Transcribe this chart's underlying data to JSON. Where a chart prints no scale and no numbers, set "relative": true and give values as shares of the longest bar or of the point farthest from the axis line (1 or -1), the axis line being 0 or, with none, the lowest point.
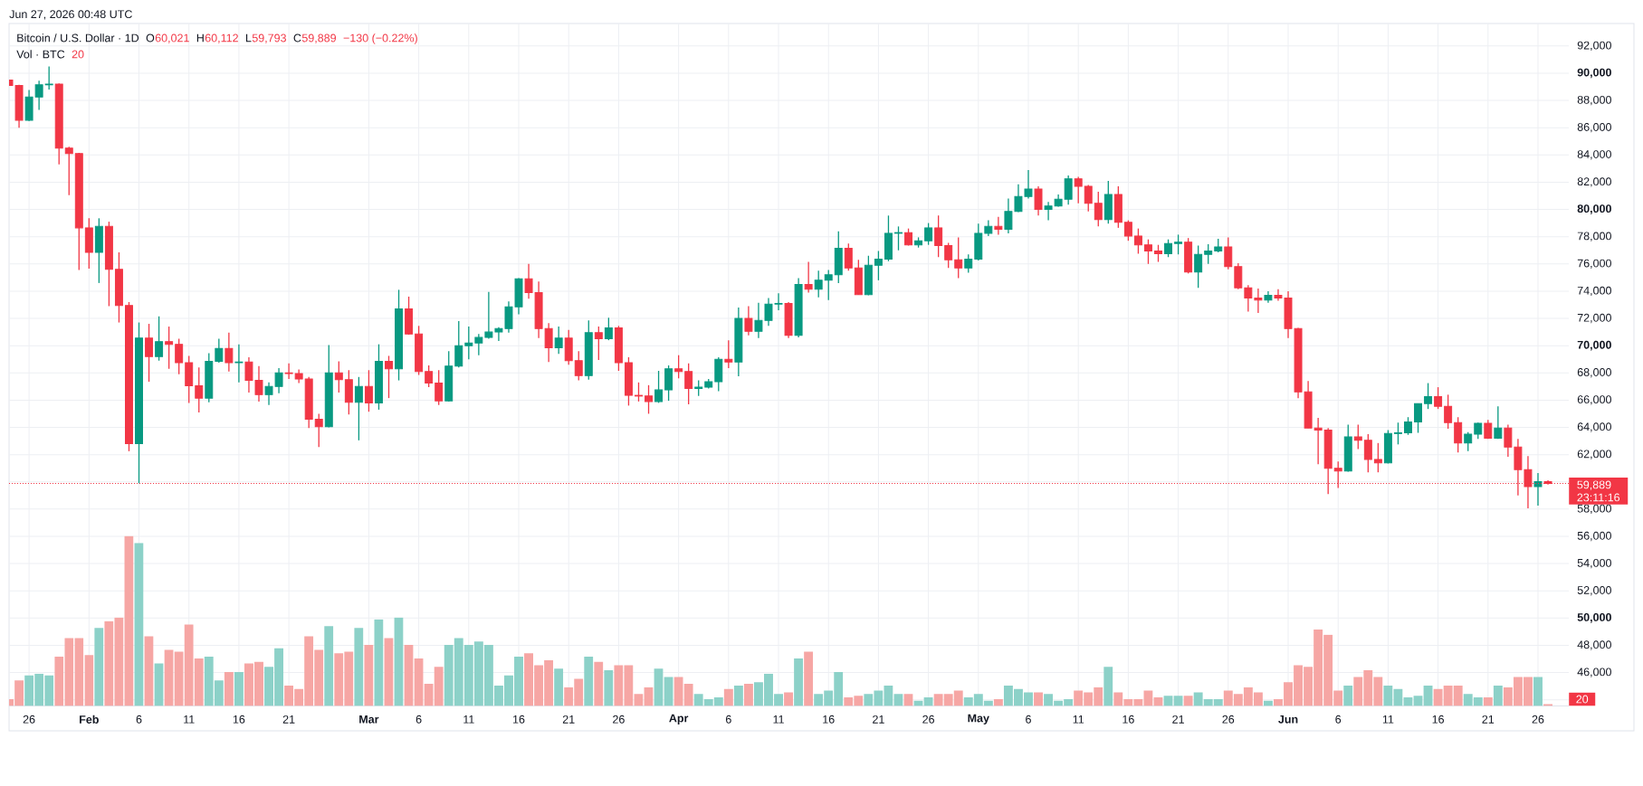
{
  "chart_data": [
    {
      "type": "candlestick",
      "title": "Bitcoin / U.S. Dollar · 1D",
      "annotations": [
        "Jun 27, 2026 00:48 UTC",
        "O",
        "60,021",
        "H",
        "60,112",
        "L",
        "59,793",
        "C",
        "59,889",
        "−130 (−0.22%)",
        "23:11:16"
      ],
      "x": [
        "2026-01-24",
        "2026-01-25",
        "2026-01-26",
        "2026-01-27",
        "2026-01-28",
        "2026-01-29",
        "2026-01-30",
        "2026-01-31",
        "2026-02-01",
        "2026-02-02",
        "2026-02-03",
        "2026-02-04",
        "2026-02-05",
        "2026-02-06",
        "2026-02-07",
        "2026-02-08",
        "2026-02-09",
        "2026-02-10",
        "2026-02-11",
        "2026-02-12",
        "2026-02-13",
        "2026-02-14",
        "2026-02-15",
        "2026-02-16",
        "2026-02-17",
        "2026-02-18",
        "2026-02-19",
        "2026-02-20",
        "2026-02-21",
        "2026-02-22",
        "2026-02-23",
        "2026-02-24",
        "2026-02-25",
        "2026-02-26",
        "2026-02-27",
        "2026-02-28",
        "2026-03-01",
        "2026-03-02",
        "2026-03-03",
        "2026-03-04",
        "2026-03-05",
        "2026-03-06",
        "2026-03-07",
        "2026-03-08",
        "2026-03-09",
        "2026-03-10",
        "2026-03-11",
        "2026-03-12",
        "2026-03-13",
        "2026-03-14",
        "2026-03-15",
        "2026-03-16",
        "2026-03-17",
        "2026-03-18",
        "2026-03-19",
        "2026-03-20",
        "2026-03-21",
        "2026-03-22",
        "2026-03-23",
        "2026-03-24",
        "2026-03-25",
        "2026-03-26",
        "2026-03-27",
        "2026-03-28",
        "2026-03-29",
        "2026-03-30",
        "2026-03-31",
        "2026-04-01",
        "2026-04-02",
        "2026-04-03",
        "2026-04-04",
        "2026-04-05",
        "2026-04-06",
        "2026-04-07",
        "2026-04-08",
        "2026-04-09",
        "2026-04-10",
        "2026-04-11",
        "2026-04-12",
        "2026-04-13",
        "2026-04-14",
        "2026-04-15",
        "2026-04-16",
        "2026-04-17",
        "2026-04-18",
        "2026-04-19",
        "2026-04-20",
        "2026-04-21",
        "2026-04-22",
        "2026-04-23",
        "2026-04-24",
        "2026-04-25",
        "2026-04-26",
        "2026-04-27",
        "2026-04-28",
        "2026-04-29",
        "2026-04-30",
        "2026-05-01",
        "2026-05-02",
        "2026-05-03",
        "2026-05-04",
        "2026-05-05",
        "2026-05-06",
        "2026-05-07",
        "2026-05-08",
        "2026-05-09",
        "2026-05-10",
        "2026-05-11",
        "2026-05-12",
        "2026-05-13",
        "2026-05-14",
        "2026-05-15",
        "2026-05-16",
        "2026-05-17",
        "2026-05-18",
        "2026-05-19",
        "2026-05-20",
        "2026-05-21",
        "2026-05-22",
        "2026-05-23",
        "2026-05-24",
        "2026-05-25",
        "2026-05-26",
        "2026-05-27",
        "2026-05-28",
        "2026-05-29",
        "2026-05-30",
        "2026-05-31",
        "2026-06-01",
        "2026-06-02",
        "2026-06-03",
        "2026-06-04",
        "2026-06-05",
        "2026-06-06",
        "2026-06-07",
        "2026-06-08",
        "2026-06-09",
        "2026-06-10",
        "2026-06-11",
        "2026-06-12",
        "2026-06-13",
        "2026-06-14",
        "2026-06-15",
        "2026-06-16",
        "2026-06-17",
        "2026-06-18",
        "2026-06-19",
        "2026-06-20",
        "2026-06-21",
        "2026-06-22",
        "2026-06-23",
        "2026-06-24",
        "2026-06-25",
        "2026-06-26",
        "2026-06-27"
      ],
      "ohlc": [
        [
          89500,
          89500,
          89100,
          89100
        ],
        [
          89100,
          89150,
          86000,
          86550
        ],
        [
          86550,
          88770,
          86500,
          88250
        ],
        [
          88250,
          89450,
          87300,
          89150
        ],
        [
          89150,
          90500,
          88800,
          89200
        ],
        [
          89200,
          89250,
          83300,
          84500
        ],
        [
          84500,
          84600,
          81050,
          84100
        ],
        [
          84100,
          84150,
          75550,
          78650
        ],
        [
          78650,
          79350,
          75650,
          76850
        ],
        [
          76850,
          79350,
          74600,
          78750
        ],
        [
          78750,
          79100,
          72900,
          75600
        ],
        [
          75600,
          76850,
          71700,
          72950
        ],
        [
          72950,
          73200,
          62250,
          62800
        ],
        [
          62800,
          71700,
          59900,
          70550
        ],
        [
          70550,
          71600,
          67350,
          69200
        ],
        [
          69200,
          72150,
          68900,
          70300
        ],
        [
          70300,
          71400,
          68300,
          70100
        ],
        [
          70100,
          70500,
          67900,
          68750
        ],
        [
          68750,
          69250,
          65800,
          67050
        ],
        [
          67050,
          68400,
          65100,
          66150
        ],
        [
          66150,
          69450,
          65850,
          68850
        ],
        [
          68850,
          70500,
          68750,
          69800
        ],
        [
          69800,
          70950,
          68100,
          68750
        ],
        [
          68750,
          70100,
          67300,
          68800
        ],
        [
          68800,
          69150,
          66550,
          67450
        ],
        [
          67450,
          68500,
          65900,
          66400
        ],
        [
          66400,
          67300,
          65650,
          67000
        ],
        [
          67000,
          68350,
          66500,
          68000
        ],
        [
          68000,
          68700,
          67550,
          67950
        ],
        [
          67950,
          68250,
          67250,
          67550
        ],
        [
          67550,
          67700,
          63950,
          64600
        ],
        [
          64600,
          65000,
          62550,
          64050
        ],
        [
          64050,
          70050,
          64000,
          68000
        ],
        [
          68000,
          68850,
          66550,
          67500
        ],
        [
          67500,
          68200,
          64950,
          65850
        ],
        [
          65850,
          67700,
          63050,
          67000
        ],
        [
          67000,
          68200,
          65150,
          65800
        ],
        [
          65800,
          70100,
          65300,
          68850
        ],
        [
          68850,
          69250,
          66150,
          68300
        ],
        [
          68300,
          74100,
          67450,
          72700
        ],
        [
          72700,
          73600,
          70800,
          70850
        ],
        [
          70850,
          71450,
          67850,
          68100
        ],
        [
          68100,
          68550,
          66950,
          67250
        ],
        [
          67250,
          68200,
          65650,
          65950
        ],
        [
          65950,
          69600,
          65900,
          68500
        ],
        [
          68500,
          71800,
          68400,
          70000
        ],
        [
          70000,
          71400,
          69000,
          70200
        ],
        [
          70200,
          70850,
          69300,
          70600
        ],
        [
          70600,
          73950,
          70500,
          71000
        ],
        [
          71000,
          71350,
          70350,
          71250
        ],
        [
          71250,
          73250,
          70950,
          72850
        ],
        [
          72850,
          74950,
          72300,
          74900
        ],
        [
          74900,
          76000,
          73450,
          73900
        ],
        [
          73900,
          74700,
          70550,
          71250
        ],
        [
          71250,
          71650,
          68800,
          69850
        ],
        [
          69850,
          71400,
          69400,
          70550
        ],
        [
          70550,
          71150,
          68600,
          68900
        ],
        [
          68900,
          69600,
          67450,
          67800
        ],
        [
          67800,
          71850,
          67500,
          70950
        ],
        [
          70950,
          71400,
          68950,
          70500
        ],
        [
          70500,
          72050,
          70400,
          71300
        ],
        [
          71300,
          71450,
          68150,
          68750
        ],
        [
          68750,
          69150,
          65600,
          66350
        ],
        [
          66350,
          67300,
          65900,
          66300
        ],
        [
          66300,
          67100,
          65000,
          65900
        ],
        [
          65900,
          68150,
          65800,
          66750
        ],
        [
          66750,
          68550,
          65950,
          68300
        ],
        [
          68300,
          69300,
          67600,
          68100
        ],
        [
          68100,
          68700,
          65700,
          66850
        ],
        [
          66850,
          67450,
          66300,
          66950
        ],
        [
          66950,
          67550,
          66850,
          67350
        ],
        [
          67350,
          69150,
          66650,
          69000
        ],
        [
          69000,
          70400,
          68350,
          68800
        ],
        [
          68800,
          72800,
          67750,
          72000
        ],
        [
          72000,
          72900,
          70750,
          71050
        ],
        [
          71050,
          73150,
          70550,
          71850
        ],
        [
          71850,
          73500,
          71450,
          73050
        ],
        [
          73050,
          73850,
          72600,
          73100
        ],
        [
          73100,
          73200,
          70550,
          70750
        ],
        [
          70750,
          74950,
          70600,
          74500
        ],
        [
          74500,
          76150,
          73900,
          74150
        ],
        [
          74150,
          75500,
          73550,
          74800
        ],
        [
          74800,
          75550,
          73350,
          75200
        ],
        [
          75200,
          78400,
          74600,
          77150
        ],
        [
          77150,
          77500,
          75500,
          75700
        ],
        [
          75700,
          76300,
          73750,
          73750
        ],
        [
          73750,
          76600,
          73700,
          75900
        ],
        [
          75900,
          76950,
          74800,
          76350
        ],
        [
          76350,
          79550,
          76200,
          78250
        ],
        [
          78250,
          78750,
          77000,
          78300
        ],
        [
          78300,
          78600,
          77350,
          77400
        ],
        [
          77400,
          77950,
          77200,
          77700
        ],
        [
          77700,
          79000,
          77400,
          78650
        ],
        [
          78650,
          79550,
          76500,
          77350
        ],
        [
          77350,
          77550,
          75700,
          76300
        ],
        [
          76300,
          77950,
          74950,
          75700
        ],
        [
          75700,
          76700,
          75350,
          76350
        ],
        [
          76350,
          78950,
          76250,
          78250
        ],
        [
          78250,
          79200,
          78050,
          78750
        ],
        [
          78750,
          79450,
          78150,
          78550
        ],
        [
          78550,
          80800,
          78250,
          79850
        ],
        [
          79850,
          81850,
          79800,
          80950
        ],
        [
          80950,
          82900,
          80800,
          81500
        ],
        [
          81500,
          81700,
          79550,
          80000
        ],
        [
          80000,
          80550,
          79200,
          80250
        ],
        [
          80250,
          81100,
          80200,
          80750
        ],
        [
          80750,
          82500,
          80350,
          82250
        ],
        [
          82250,
          82400,
          80450,
          81700
        ],
        [
          81700,
          81800,
          79850,
          80450
        ],
        [
          80450,
          81300,
          78750,
          79250
        ],
        [
          79250,
          82100,
          78950,
          81100
        ],
        [
          81100,
          81700,
          78650,
          79050
        ],
        [
          79050,
          79200,
          77700,
          78050
        ],
        [
          78050,
          78600,
          76750,
          77400
        ],
        [
          77400,
          77800,
          76000,
          76950
        ],
        [
          76950,
          77400,
          76150,
          76750
        ],
        [
          76750,
          77800,
          76500,
          77500
        ],
        [
          77500,
          78150,
          76700,
          77600
        ],
        [
          77600,
          77900,
          75300,
          75400
        ],
        [
          75400,
          77350,
          74250,
          76700
        ],
        [
          76700,
          77450,
          76000,
          76950
        ],
        [
          76950,
          77850,
          76850,
          77250
        ],
        [
          77250,
          77950,
          75600,
          75800
        ],
        [
          75800,
          76050,
          74150,
          74250
        ],
        [
          74250,
          74450,
          72500,
          73500
        ],
        [
          73500,
          74200,
          72400,
          73350
        ],
        [
          73350,
          74000,
          73150,
          73700
        ],
        [
          73700,
          74150,
          73300,
          73500
        ],
        [
          73500,
          74000,
          70550,
          71250
        ],
        [
          71250,
          71300,
          66150,
          66600
        ],
        [
          66600,
          67400,
          63950,
          63950
        ],
        [
          63950,
          64700,
          61300,
          63800
        ],
        [
          63800,
          63950,
          59100,
          61000
        ],
        [
          61000,
          61500,
          59550,
          60800
        ],
        [
          60800,
          64200,
          60750,
          63300
        ],
        [
          63300,
          64200,
          62400,
          63050
        ],
        [
          63050,
          63500,
          60700,
          61650
        ],
        [
          61650,
          62850,
          60700,
          61400
        ],
        [
          61400,
          63800,
          61350,
          63550
        ],
        [
          63550,
          64350,
          62750,
          63600
        ],
        [
          63600,
          64750,
          63450,
          64400
        ],
        [
          64400,
          65750,
          63600,
          65750
        ],
        [
          65750,
          67250,
          65350,
          66250
        ],
        [
          66250,
          66950,
          65350,
          65550
        ],
        [
          65550,
          66400,
          63900,
          64350
        ],
        [
          64350,
          64750,
          62150,
          62850
        ],
        [
          62850,
          63650,
          62250,
          63500
        ],
        [
          63500,
          64350,
          63150,
          64300
        ],
        [
          64300,
          64550,
          63150,
          63200
        ],
        [
          63200,
          65550,
          63150,
          63950
        ],
        [
          63950,
          64200,
          61850,
          62550
        ],
        [
          62550,
          63150,
          59000,
          60900
        ],
        [
          60900,
          61900,
          58050,
          59650
        ],
        [
          59650,
          60650,
          58250,
          60021
        ],
        [
          60021,
          60112,
          59793,
          59889
        ]
      ],
      "colors": [
        "#f23645",
        "#f23645",
        "#089981",
        "#089981",
        "#089981",
        "#f23645",
        "#f23645",
        "#f23645",
        "#f23645",
        "#089981",
        "#f23645",
        "#f23645",
        "#f23645",
        "#089981",
        "#f23645",
        "#089981",
        "#f23645",
        "#f23645",
        "#f23645",
        "#f23645",
        "#089981",
        "#089981",
        "#f23645",
        "#089981",
        "#f23645",
        "#f23645",
        "#089981",
        "#089981",
        "#f23645",
        "#f23645",
        "#f23645",
        "#f23645",
        "#089981",
        "#f23645",
        "#f23645",
        "#089981",
        "#f23645",
        "#089981",
        "#f23645",
        "#089981",
        "#f23645",
        "#f23645",
        "#f23645",
        "#f23645",
        "#089981",
        "#089981",
        "#089981",
        "#089981",
        "#089981",
        "#089981",
        "#089981",
        "#089981",
        "#f23645",
        "#f23645",
        "#f23645",
        "#089981",
        "#f23645",
        "#f23645",
        "#089981",
        "#f23645",
        "#089981",
        "#f23645",
        "#f23645",
        "#f23645",
        "#f23645",
        "#089981",
        "#089981",
        "#f23645",
        "#f23645",
        "#089981",
        "#089981",
        "#089981",
        "#f23645",
        "#089981",
        "#f23645",
        "#089981",
        "#089981",
        "#089981",
        "#f23645",
        "#089981",
        "#f23645",
        "#089981",
        "#089981",
        "#089981",
        "#f23645",
        "#f23645",
        "#089981",
        "#089981",
        "#089981",
        "#089981",
        "#f23645",
        "#089981",
        "#089981",
        "#f23645",
        "#f23645",
        "#f23645",
        "#089981",
        "#089981",
        "#089981",
        "#f23645",
        "#089981",
        "#089981",
        "#089981",
        "#f23645",
        "#089981",
        "#089981",
        "#089981",
        "#f23645",
        "#f23645",
        "#f23645",
        "#089981",
        "#f23645",
        "#f23645",
        "#f23645",
        "#f23645",
        "#f23645",
        "#089981",
        "#089981",
        "#f23645",
        "#089981",
        "#089981",
        "#089981",
        "#f23645",
        "#f23645",
        "#f23645",
        "#f23645",
        "#089981",
        "#f23645",
        "#f23645",
        "#f23645",
        "#f23645",
        "#f23645",
        "#f23645",
        "#f23645",
        "#089981",
        "#f23645",
        "#f23645",
        "#f23645",
        "#089981",
        "#089981",
        "#089981",
        "#089981",
        "#089981",
        "#f23645",
        "#f23645",
        "#f23645",
        "#089981",
        "#089981",
        "#f23645",
        "#089981",
        "#f23645",
        "#f23645",
        "#f23645",
        "#089981",
        "#f23645"
      ],
      "xlim": [
        "2026-01-24",
        "2026-06-29T02:00"
      ],
      "ylim": [
        43550,
        93650
      ],
      "xticks": [
        {
          "value": "2026-01-26",
          "label": "26"
        },
        {
          "value": "2026-02-01",
          "label": "Feb"
        },
        {
          "value": "2026-02-06",
          "label": "6"
        },
        {
          "value": "2026-02-11",
          "label": "11"
        },
        {
          "value": "2026-02-16",
          "label": "16"
        },
        {
          "value": "2026-02-21",
          "label": "21"
        },
        {
          "value": "2026-03-01",
          "label": "Mar"
        },
        {
          "value": "2026-03-06",
          "label": "6"
        },
        {
          "value": "2026-03-11",
          "label": "11"
        },
        {
          "value": "2026-03-16",
          "label": "16"
        },
        {
          "value": "2026-03-21",
          "label": "21"
        },
        {
          "value": "2026-03-26",
          "label": "26"
        },
        {
          "value": "2026-04-01",
          "label": "Apr"
        },
        {
          "value": "2026-04-06",
          "label": "6"
        },
        {
          "value": "2026-04-11",
          "label": "11"
        },
        {
          "value": "2026-04-16",
          "label": "16"
        },
        {
          "value": "2026-04-21",
          "label": "21"
        },
        {
          "value": "2026-04-26",
          "label": "26"
        },
        {
          "value": "2026-05-01",
          "label": "May"
        },
        {
          "value": "2026-05-06",
          "label": "6"
        },
        {
          "value": "2026-05-11",
          "label": "11"
        },
        {
          "value": "2026-05-16",
          "label": "16"
        },
        {
          "value": "2026-05-21",
          "label": "21"
        },
        {
          "value": "2026-05-26",
          "label": "26"
        },
        {
          "value": "2026-06-01",
          "label": "Jun"
        },
        {
          "value": "2026-06-06",
          "label": "6"
        },
        {
          "value": "2026-06-11",
          "label": "11"
        },
        {
          "value": "2026-06-16",
          "label": "16"
        },
        {
          "value": "2026-06-21",
          "label": "21"
        },
        {
          "value": "2026-06-26",
          "label": "26"
        }
      ],
      "yticks": [
        {
          "value": 44000,
          "label": null
        },
        {
          "value": 46000,
          "label": "46,000"
        },
        {
          "value": 48000,
          "label": "48,000"
        },
        {
          "value": 50000,
          "label": "50,000"
        },
        {
          "value": 52000,
          "label": "52,000"
        },
        {
          "value": 54000,
          "label": "54,000"
        },
        {
          "value": 56000,
          "label": "56,000"
        },
        {
          "value": 58000,
          "label": "58,000"
        },
        {
          "value": 60000,
          "label": null
        },
        {
          "value": 62000,
          "label": "62,000"
        },
        {
          "value": 64000,
          "label": "64,000"
        },
        {
          "value": 66000,
          "label": "66,000"
        },
        {
          "value": 68000,
          "label": "68,000"
        },
        {
          "value": 70000,
          "label": "70,000"
        },
        {
          "value": 72000,
          "label": "72,000"
        },
        {
          "value": 74000,
          "label": "74,000"
        },
        {
          "value": 76000,
          "label": "76,000"
        },
        {
          "value": 78000,
          "label": "78,000"
        },
        {
          "value": 80000,
          "label": "80,000"
        },
        {
          "value": 82000,
          "label": "82,000"
        },
        {
          "value": 84000,
          "label": "84,000"
        },
        {
          "value": 86000,
          "label": "86,000"
        },
        {
          "value": 88000,
          "label": "88,000"
        },
        {
          "value": 90000,
          "label": "90,000"
        },
        {
          "value": 92000,
          "label": "92,000"
        }
      ],
      "grid": true,
      "ref_lines": [
        {
          "axis": "y",
          "value": 59889,
          "label": "59,889",
          "color": "#f23645",
          "line_style": "dotted"
        }
      ]
    },
    {
      "type": "bar",
      "title": "Vol · BTC",
      "annotations": [
        "20",
        "20"
      ],
      "relative": true,
      "tick_labels": false,
      "x": [
        "2026-01-24",
        "2026-01-25",
        "2026-01-26",
        "2026-01-27",
        "2026-01-28",
        "2026-01-29",
        "2026-01-30",
        "2026-01-31",
        "2026-02-01",
        "2026-02-02",
        "2026-02-03",
        "2026-02-04",
        "2026-02-05",
        "2026-02-06",
        "2026-02-07",
        "2026-02-08",
        "2026-02-09",
        "2026-02-10",
        "2026-02-11",
        "2026-02-12",
        "2026-02-13",
        "2026-02-14",
        "2026-02-15",
        "2026-02-16",
        "2026-02-17",
        "2026-02-18",
        "2026-02-19",
        "2026-02-20",
        "2026-02-21",
        "2026-02-22",
        "2026-02-23",
        "2026-02-24",
        "2026-02-25",
        "2026-02-26",
        "2026-02-27",
        "2026-02-28",
        "2026-03-01",
        "2026-03-02",
        "2026-03-03",
        "2026-03-04",
        "2026-03-05",
        "2026-03-06",
        "2026-03-07",
        "2026-03-08",
        "2026-03-09",
        "2026-03-10",
        "2026-03-11",
        "2026-03-12",
        "2026-03-13",
        "2026-03-14",
        "2026-03-15",
        "2026-03-16",
        "2026-03-17",
        "2026-03-18",
        "2026-03-19",
        "2026-03-20",
        "2026-03-21",
        "2026-03-22",
        "2026-03-23",
        "2026-03-24",
        "2026-03-25",
        "2026-03-26",
        "2026-03-27",
        "2026-03-28",
        "2026-03-29",
        "2026-03-30",
        "2026-03-31",
        "2026-04-01",
        "2026-04-02",
        "2026-04-03",
        "2026-04-04",
        "2026-04-05",
        "2026-04-06",
        "2026-04-07",
        "2026-04-08",
        "2026-04-09",
        "2026-04-10",
        "2026-04-11",
        "2026-04-12",
        "2026-04-13",
        "2026-04-14",
        "2026-04-15",
        "2026-04-16",
        "2026-04-17",
        "2026-04-18",
        "2026-04-19",
        "2026-04-20",
        "2026-04-21",
        "2026-04-22",
        "2026-04-23",
        "2026-04-24",
        "2026-04-25",
        "2026-04-26",
        "2026-04-27",
        "2026-04-28",
        "2026-04-29",
        "2026-04-30",
        "2026-05-01",
        "2026-05-02",
        "2026-05-03",
        "2026-05-04",
        "2026-05-05",
        "2026-05-06",
        "2026-05-07",
        "2026-05-08",
        "2026-05-09",
        "2026-05-10",
        "2026-05-11",
        "2026-05-12",
        "2026-05-13",
        "2026-05-14",
        "2026-05-15",
        "2026-05-16",
        "2026-05-17",
        "2026-05-18",
        "2026-05-19",
        "2026-05-20",
        "2026-05-21",
        "2026-05-22",
        "2026-05-23",
        "2026-05-24",
        "2026-05-25",
        "2026-05-26",
        "2026-05-27",
        "2026-05-28",
        "2026-05-29",
        "2026-05-30",
        "2026-05-31",
        "2026-06-01",
        "2026-06-02",
        "2026-06-03",
        "2026-06-04",
        "2026-06-05",
        "2026-06-06",
        "2026-06-07",
        "2026-06-08",
        "2026-06-09",
        "2026-06-10",
        "2026-06-11",
        "2026-06-12",
        "2026-06-13",
        "2026-06-14",
        "2026-06-15",
        "2026-06-16",
        "2026-06-17",
        "2026-06-18",
        "2026-06-19",
        "2026-06-20",
        "2026-06-21",
        "2026-06-22",
        "2026-06-23",
        "2026-06-24",
        "2026-06-25",
        "2026-06-26",
        "2026-06-27"
      ],
      "values": [
        0.04,
        0.15,
        0.18,
        0.19,
        0.18,
        0.29,
        0.4,
        0.4,
        0.3,
        0.46,
        0.5,
        0.52,
        1,
        0.96,
        0.41,
        0.25,
        0.33,
        0.32,
        0.48,
        0.28,
        0.29,
        0.15,
        0.2,
        0.2,
        0.25,
        0.26,
        0.23,
        0.34,
        0.12,
        0.1,
        0.41,
        0.33,
        0.47,
        0.31,
        0.32,
        0.46,
        0.36,
        0.51,
        0.4,
        0.52,
        0.36,
        0.28,
        0.13,
        0.23,
        0.36,
        0.4,
        0.36,
        0.38,
        0.36,
        0.12,
        0.18,
        0.29,
        0.31,
        0.24,
        0.27,
        0.22,
        0.11,
        0.16,
        0.29,
        0.26,
        0.21,
        0.24,
        0.24,
        0.07,
        0.11,
        0.22,
        0.17,
        0.17,
        0.13,
        0.07,
        0.04,
        0.05,
        0.1,
        0.12,
        0.13,
        0.14,
        0.19,
        0.07,
        0.08,
        0.28,
        0.32,
        0.07,
        0.09,
        0.2,
        0.05,
        0.06,
        0.07,
        0.09,
        0.12,
        0.07,
        0.07,
        0.03,
        0.05,
        0.07,
        0.07,
        0.09,
        0.05,
        0.07,
        0.03,
        0.04,
        0.12,
        0.1,
        0.08,
        0.08,
        0.07,
        0.03,
        0.04,
        0.09,
        0.08,
        0.11,
        0.23,
        0.08,
        0.04,
        0.04,
        0.09,
        0.05,
        0.06,
        0.06,
        0.06,
        0.08,
        0.04,
        0.04,
        0.09,
        0.07,
        0.11,
        0.08,
        0.03,
        0.04,
        0.14,
        0.24,
        0.23,
        0.45,
        0.42,
        0.09,
        0.12,
        0.17,
        0.21,
        0.17,
        0.12,
        0.1,
        0.05,
        0.06,
        0.12,
        0.1,
        0.12,
        0.12,
        0.07,
        0.05,
        0.05,
        0.12,
        0.11,
        0.17,
        0.17,
        0.17,
        0.01
      ],
      "colors": [
        "#f6a6a4",
        "#f6a6a4",
        "#8cd1c8",
        "#8cd1c8",
        "#8cd1c8",
        "#f6a6a4",
        "#f6a6a4",
        "#f6a6a4",
        "#f6a6a4",
        "#8cd1c8",
        "#f6a6a4",
        "#f6a6a4",
        "#f6a6a4",
        "#8cd1c8",
        "#f6a6a4",
        "#8cd1c8",
        "#f6a6a4",
        "#f6a6a4",
        "#f6a6a4",
        "#f6a6a4",
        "#8cd1c8",
        "#8cd1c8",
        "#f6a6a4",
        "#8cd1c8",
        "#f6a6a4",
        "#f6a6a4",
        "#8cd1c8",
        "#8cd1c8",
        "#f6a6a4",
        "#f6a6a4",
        "#f6a6a4",
        "#f6a6a4",
        "#8cd1c8",
        "#f6a6a4",
        "#f6a6a4",
        "#8cd1c8",
        "#f6a6a4",
        "#8cd1c8",
        "#f6a6a4",
        "#8cd1c8",
        "#f6a6a4",
        "#f6a6a4",
        "#f6a6a4",
        "#f6a6a4",
        "#8cd1c8",
        "#8cd1c8",
        "#8cd1c8",
        "#8cd1c8",
        "#8cd1c8",
        "#8cd1c8",
        "#8cd1c8",
        "#8cd1c8",
        "#f6a6a4",
        "#f6a6a4",
        "#f6a6a4",
        "#8cd1c8",
        "#f6a6a4",
        "#f6a6a4",
        "#8cd1c8",
        "#f6a6a4",
        "#8cd1c8",
        "#f6a6a4",
        "#f6a6a4",
        "#f6a6a4",
        "#f6a6a4",
        "#8cd1c8",
        "#8cd1c8",
        "#f6a6a4",
        "#f6a6a4",
        "#8cd1c8",
        "#8cd1c8",
        "#8cd1c8",
        "#f6a6a4",
        "#8cd1c8",
        "#f6a6a4",
        "#8cd1c8",
        "#8cd1c8",
        "#8cd1c8",
        "#f6a6a4",
        "#8cd1c8",
        "#f6a6a4",
        "#8cd1c8",
        "#8cd1c8",
        "#8cd1c8",
        "#f6a6a4",
        "#f6a6a4",
        "#8cd1c8",
        "#8cd1c8",
        "#8cd1c8",
        "#8cd1c8",
        "#f6a6a4",
        "#8cd1c8",
        "#8cd1c8",
        "#f6a6a4",
        "#f6a6a4",
        "#f6a6a4",
        "#8cd1c8",
        "#8cd1c8",
        "#8cd1c8",
        "#f6a6a4",
        "#8cd1c8",
        "#8cd1c8",
        "#8cd1c8",
        "#f6a6a4",
        "#8cd1c8",
        "#8cd1c8",
        "#8cd1c8",
        "#f6a6a4",
        "#f6a6a4",
        "#f6a6a4",
        "#8cd1c8",
        "#f6a6a4",
        "#f6a6a4",
        "#f6a6a4",
        "#f6a6a4",
        "#f6a6a4",
        "#8cd1c8",
        "#8cd1c8",
        "#f6a6a4",
        "#8cd1c8",
        "#8cd1c8",
        "#8cd1c8",
        "#f6a6a4",
        "#f6a6a4",
        "#f6a6a4",
        "#f6a6a4",
        "#8cd1c8",
        "#f6a6a4",
        "#f6a6a4",
        "#f6a6a4",
        "#f6a6a4",
        "#f6a6a4",
        "#f6a6a4",
        "#f6a6a4",
        "#8cd1c8",
        "#f6a6a4",
        "#f6a6a4",
        "#f6a6a4",
        "#8cd1c8",
        "#8cd1c8",
        "#8cd1c8",
        "#8cd1c8",
        "#8cd1c8",
        "#f6a6a4",
        "#f6a6a4",
        "#f6a6a4",
        "#8cd1c8",
        "#8cd1c8",
        "#f6a6a4",
        "#8cd1c8",
        "#f6a6a4",
        "#f6a6a4",
        "#f6a6a4",
        "#8cd1c8",
        "#f6a6a4"
      ],
      "xlim": [
        "2026-01-24",
        "2026-06-29T02:00"
      ]
    }
  ]
}
